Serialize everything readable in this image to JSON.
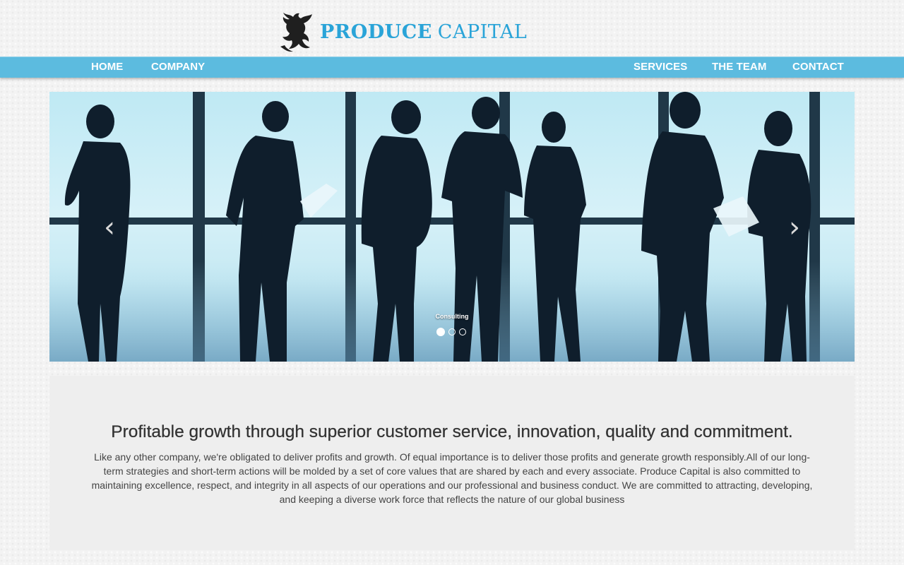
{
  "logo": {
    "bold": "PRODUCE",
    "light": "CAPITAL"
  },
  "nav": {
    "home": "HOME",
    "company": "COMPANY",
    "services": "SERVICES",
    "team": "THE TEAM",
    "contact": "CONTACT"
  },
  "carousel": {
    "caption": "Consulting",
    "prev_icon": "chevron-left-icon",
    "next_icon": "chevron-right-icon",
    "slide_count": 3,
    "active_slide": 1
  },
  "content": {
    "headline": "Profitable growth through superior customer service, innovation, quality and commitment.",
    "body": "Like any other company, we're obligated to deliver profits and growth. Of equal importance is to deliver those profits and generate growth responsibly.All of our long-term strategies and short-term actions will be molded by a set of core values that are shared by each and every associate. Produce Capital is also committed to maintaining excellence, respect, and integrity in all aspects of our operations and our professional and business conduct. We are committed to attracting, developing, and keeping a diverse work force that reflects the nature of our global business"
  },
  "colors": {
    "brand": "#2aa4d8",
    "nav_bar": "#5cbbdf",
    "content_panel": "#eeeeee"
  }
}
